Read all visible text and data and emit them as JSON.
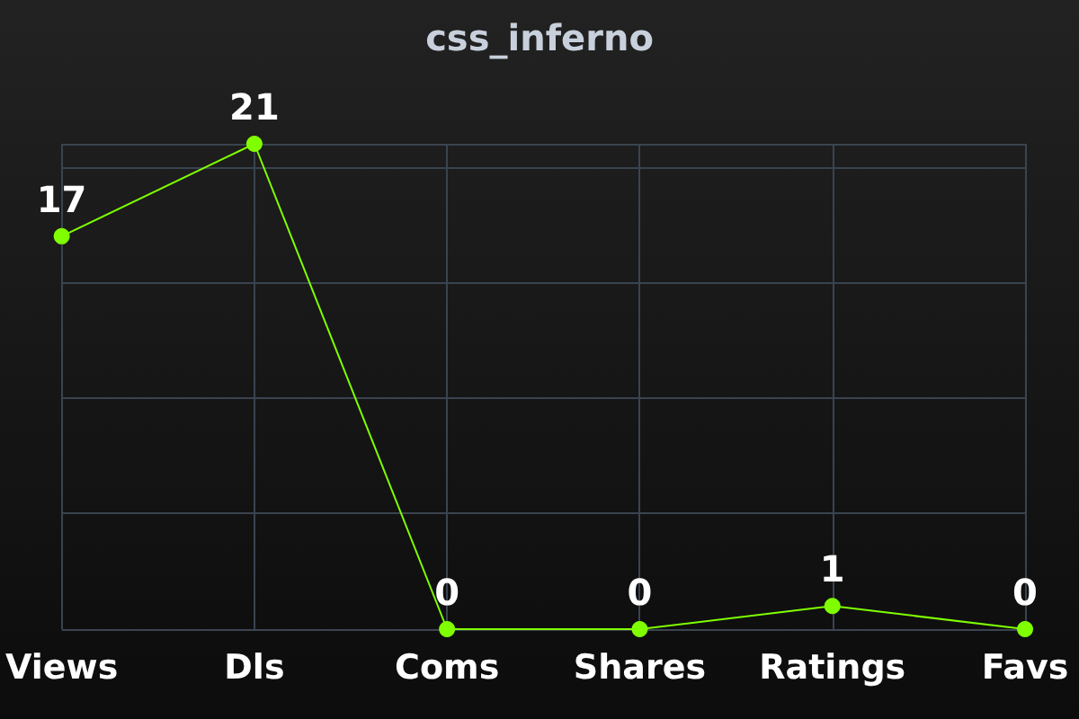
{
  "chart_data": {
    "type": "line",
    "title": "css_inferno",
    "categories": [
      "Views",
      "Dls",
      "Coms",
      "Shares",
      "Ratings",
      "Favs"
    ],
    "series": [
      {
        "color": "#7fff00",
        "values": [
          17,
          21,
          0,
          0,
          1,
          0
        ]
      }
    ],
    "data_labels": true,
    "grid": true,
    "marker": "circle",
    "line_style": "solid",
    "tick_labels": "x"
  }
}
